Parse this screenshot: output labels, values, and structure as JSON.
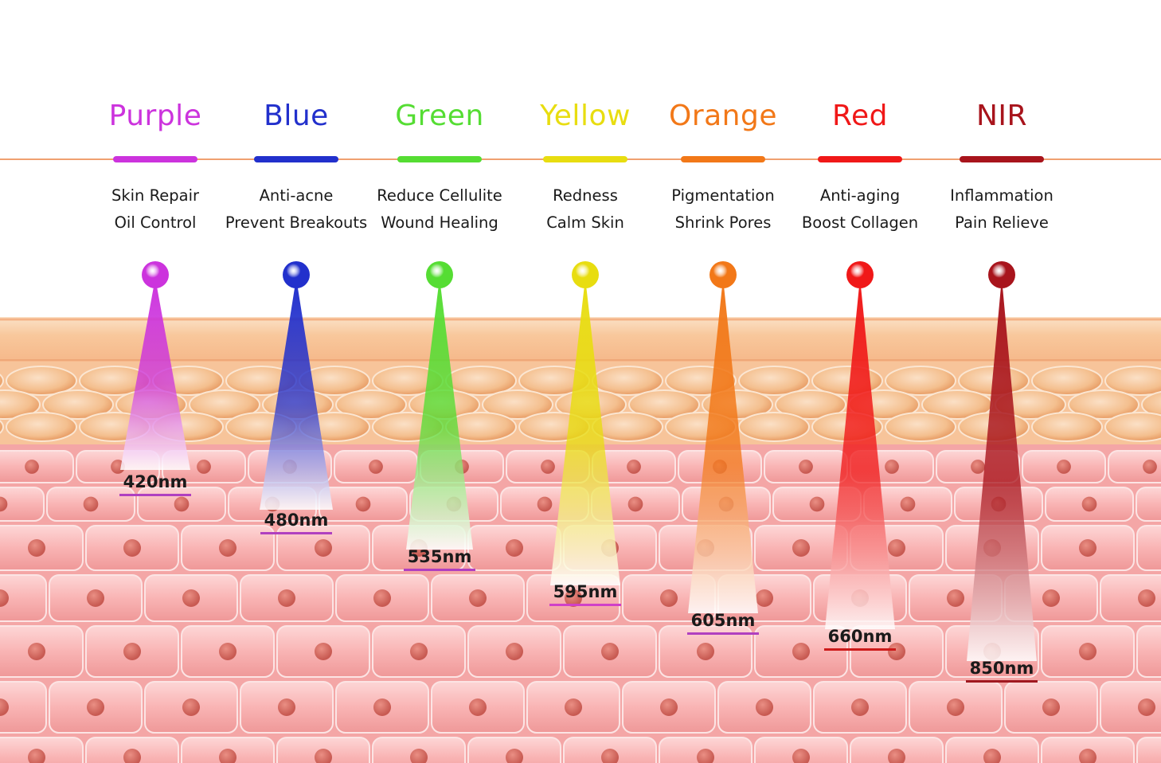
{
  "columns": [
    {
      "name": "Purple",
      "color": "#cc33dd",
      "benefits": [
        "Skin Repair",
        "Oil Control"
      ],
      "wavelength": "420nm",
      "underline": "#b040c0"
    },
    {
      "name": "Blue",
      "color": "#2230cc",
      "benefits": [
        "Anti-acne",
        "Prevent Breakouts"
      ],
      "wavelength": "480nm",
      "underline": "#b040c0"
    },
    {
      "name": "Green",
      "color": "#55dd33",
      "benefits": [
        "Reduce Cellulite",
        "Wound Healing"
      ],
      "wavelength": "535nm",
      "underline": "#b040c0"
    },
    {
      "name": "Yellow",
      "color": "#e8dd10",
      "benefits": [
        "Redness",
        "Calm Skin"
      ],
      "wavelength": "595nm",
      "underline": "#d040c8"
    },
    {
      "name": "Orange",
      "color": "#f27818",
      "benefits": [
        "Pigmentation",
        "Shrink Pores"
      ],
      "wavelength": "605nm",
      "underline": "#b040c0"
    },
    {
      "name": "Red",
      "color": "#f01818",
      "benefits": [
        "Anti-aging",
        "Boost Collagen"
      ],
      "wavelength": "660nm",
      "underline": "#cc1a1a"
    },
    {
      "name": "NIR",
      "color": "#a8141c",
      "benefits": [
        "Inflammation",
        "Pain Relieve"
      ],
      "wavelength": "850nm",
      "underline": "#a01820"
    }
  ],
  "colors": {
    "divider_line": "#f0a070",
    "epidermis": "#f8c8a0",
    "fat_cells": "#f2b080",
    "skin_cells": "#f6a8a8",
    "nucleus": "#d86a62"
  }
}
